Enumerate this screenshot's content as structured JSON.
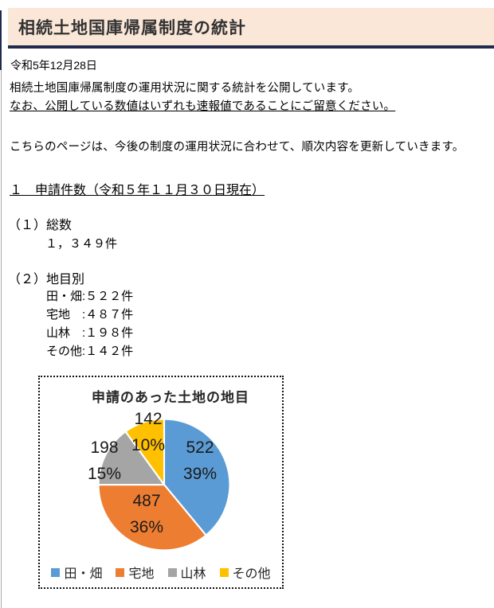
{
  "page": {
    "header": {
      "title": "相続土地国庫帰属制度の統計"
    },
    "date": "令和5年12月28日",
    "intro": {
      "line1": "相続土地国庫帰属制度の運用状況に関する統計を公開しています。",
      "line2": "なお、公開している数値はいずれも速報値であることにご留意ください。"
    },
    "update_note": "こちらのページは、今後の制度の運用状況に合わせて、順次内容を更新していきます。",
    "section1": {
      "heading": "１　申請件数（令和５年１１月３０日現在）",
      "total_label": "（１）総数",
      "total_value": "１，３４９件",
      "by_type_label": "（２）地目別",
      "by_type_items": [
        "田・畑:５２２件",
        "宅地　:４８７件",
        "山林　:１９８件",
        "その他:１４２件"
      ]
    }
  },
  "chart_data": {
    "type": "pie",
    "title": "申請のあった土地の地目",
    "categories": [
      "田・畑",
      "宅地",
      "山林",
      "その他"
    ],
    "values": [
      522,
      487,
      198,
      142
    ],
    "percents": [
      39,
      36,
      15,
      10
    ],
    "percent_labels": [
      "39%",
      "36%",
      "15%",
      "10%"
    ],
    "colors": [
      "#5B9BD5",
      "#ED7D31",
      "#A5A5A5",
      "#FFC000"
    ],
    "start_angle_deg": 0,
    "direction": "clockwise",
    "legend_position": "bottom",
    "frame_border": "dotted"
  }
}
